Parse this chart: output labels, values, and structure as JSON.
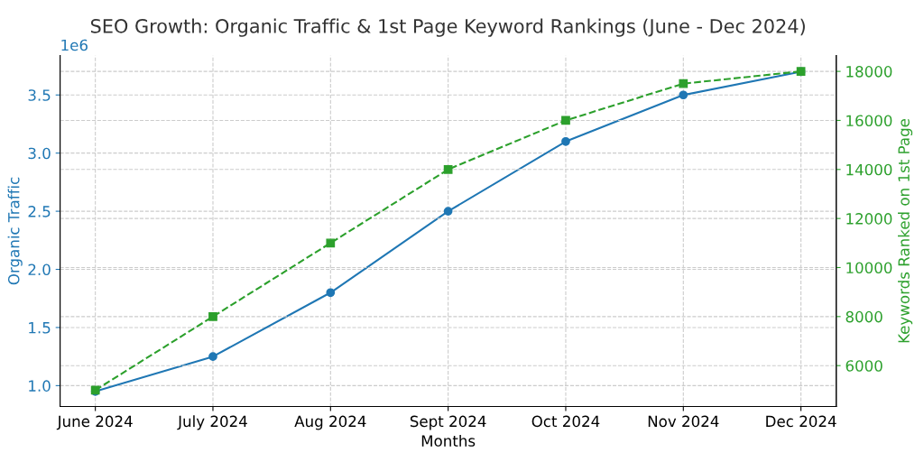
{
  "chart_data": {
    "type": "line",
    "title": "SEO Growth: Organic Traffic & 1st Page Keyword Rankings (June - Dec 2024)",
    "xlabel": "Months",
    "ylabel": "Organic Traffic",
    "y2label": "Keywords Ranked on 1st Page",
    "categories": [
      "June 2024",
      "July 2024",
      "Aug 2024",
      "Sept 2024",
      "Oct 2024",
      "Nov 2024",
      "Dec 2024"
    ],
    "series": [
      {
        "color": "#1f77b4",
        "marker": "circle",
        "line_style": "solid",
        "values": [
          0.95,
          1.25,
          1.8,
          2.5,
          3.1,
          3.5,
          3.7
        ]
      },
      {
        "color": "#2ca02c",
        "marker": "square",
        "line_style": "dashed",
        "axis": "y2",
        "values": [
          5000,
          8000,
          11000,
          14000,
          16000,
          17500,
          18000
        ]
      }
    ],
    "ylim": [
      0.82,
      3.84
    ],
    "yticks": [
      {
        "value": 1,
        "label": "1.0"
      },
      1.5,
      {
        "value": 2,
        "label": "2.0"
      },
      2.5,
      {
        "value": 3,
        "label": "3.0"
      },
      3.5
    ],
    "y2lim": [
      4330,
      18650
    ],
    "y2ticks": [
      6000,
      8000,
      10000,
      12000,
      14000,
      16000,
      18000
    ],
    "annotations": [
      "1e6"
    ],
    "grid": true,
    "legend": false
  }
}
